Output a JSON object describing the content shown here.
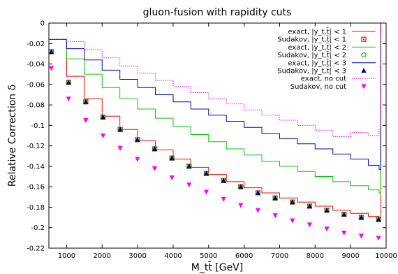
{
  "chart_data": {
    "type": "line",
    "title": "gluon-fusion with rapidity cuts",
    "xlabel": "M_tt̄ [GeV]",
    "ylabel": "Relative Correction δ",
    "xlim": [
      500,
      10000
    ],
    "ylim": [
      -0.22,
      0
    ],
    "x_ticks": [
      1000,
      2000,
      3000,
      4000,
      5000,
      6000,
      7000,
      8000,
      9000,
      10000
    ],
    "y_ticks": [
      0,
      -0.02,
      -0.04,
      -0.06,
      -0.08,
      -0.1,
      -0.12,
      -0.14,
      -0.16,
      -0.18,
      -0.2,
      -0.22
    ],
    "grid": false,
    "legend_position": "top-right",
    "x_points": [
      500,
      1000,
      1500,
      2000,
      2500,
      3000,
      3500,
      4000,
      4500,
      5000,
      5500,
      6000,
      6500,
      7000,
      7500,
      8000,
      8500,
      9000,
      9500,
      9800
    ],
    "series": [
      {
        "name": "exact, |y_t,t̄| < 1",
        "style": "step",
        "color": "#ff0000",
        "values": [
          -0.016,
          -0.052,
          -0.074,
          -0.091,
          -0.104,
          -0.115,
          -0.124,
          -0.133,
          -0.141,
          -0.148,
          -0.155,
          -0.161,
          -0.166,
          -0.171,
          -0.175,
          -0.179,
          -0.183,
          -0.186,
          -0.189,
          -0.191
        ]
      },
      {
        "name": "Sudakov, |y_t,t̄| < 1",
        "style": "marker",
        "marker": "square-dot",
        "color": "#ff0000",
        "values": [
          -0.028,
          -0.058,
          -0.077,
          -0.092,
          -0.104,
          -0.114,
          -0.123,
          -0.132,
          -0.14,
          -0.147,
          -0.154,
          -0.16,
          -0.166,
          -0.171,
          -0.175,
          -0.179,
          -0.183,
          -0.187,
          -0.19,
          -0.192
        ]
      },
      {
        "name": "exact, |y_t,t̄| < 2",
        "style": "step",
        "color": "#00cc00",
        "values": [
          -0.016,
          -0.035,
          -0.05,
          -0.063,
          -0.074,
          -0.084,
          -0.093,
          -0.101,
          -0.109,
          -0.116,
          -0.123,
          -0.129,
          -0.135,
          -0.14,
          -0.145,
          -0.15,
          -0.155,
          -0.159,
          -0.163,
          -0.166
        ]
      },
      {
        "name": "Sudakov, |y_t,t̄| < 2",
        "style": "marker",
        "marker": "circle",
        "color": "#00cc00",
        "values": [
          -0.028,
          -0.058,
          -0.077,
          -0.092,
          -0.104,
          -0.114,
          -0.123,
          -0.132,
          -0.14,
          -0.147,
          -0.154,
          -0.16,
          -0.166,
          -0.171,
          -0.175,
          -0.179,
          -0.183,
          -0.187,
          -0.19,
          -0.192
        ]
      },
      {
        "name": "exact, |y_t,t̄| < 3",
        "style": "step",
        "color": "#0000cc",
        "values": [
          -0.016,
          -0.025,
          -0.036,
          -0.046,
          -0.055,
          -0.063,
          -0.07,
          -0.077,
          -0.084,
          -0.09,
          -0.096,
          -0.102,
          -0.108,
          -0.113,
          -0.118,
          -0.123,
          -0.128,
          -0.133,
          -0.139,
          -0.143
        ]
      },
      {
        "name": "Sudakov, |y_t,t̄| < 3",
        "style": "marker",
        "marker": "triangle-up",
        "color": "#000080",
        "values": [
          -0.028,
          -0.058,
          -0.077,
          -0.092,
          -0.104,
          -0.114,
          -0.123,
          -0.132,
          -0.14,
          -0.147,
          -0.154,
          -0.16,
          -0.166,
          -0.171,
          -0.175,
          -0.179,
          -0.183,
          -0.187,
          -0.19,
          -0.192
        ]
      },
      {
        "name": "exact, no cut",
        "style": "dotted-step",
        "color": "#ff00ff",
        "values": [
          -0.016,
          -0.018,
          -0.026,
          -0.034,
          -0.042,
          -0.049,
          -0.056,
          -0.062,
          -0.068,
          -0.074,
          -0.079,
          -0.085,
          -0.09,
          -0.095,
          -0.1,
          -0.105,
          -0.111,
          -0.107,
          -0.11,
          -0.104
        ]
      },
      {
        "name": "Sudakov, no cut",
        "style": "marker",
        "marker": "triangle-down",
        "color": "#ff00ff",
        "values": [
          -0.044,
          -0.074,
          -0.095,
          -0.11,
          -0.122,
          -0.133,
          -0.142,
          -0.151,
          -0.158,
          -0.165,
          -0.172,
          -0.178,
          -0.183,
          -0.188,
          -0.193,
          -0.197,
          -0.201,
          -0.205,
          -0.208,
          -0.21
        ]
      }
    ]
  }
}
